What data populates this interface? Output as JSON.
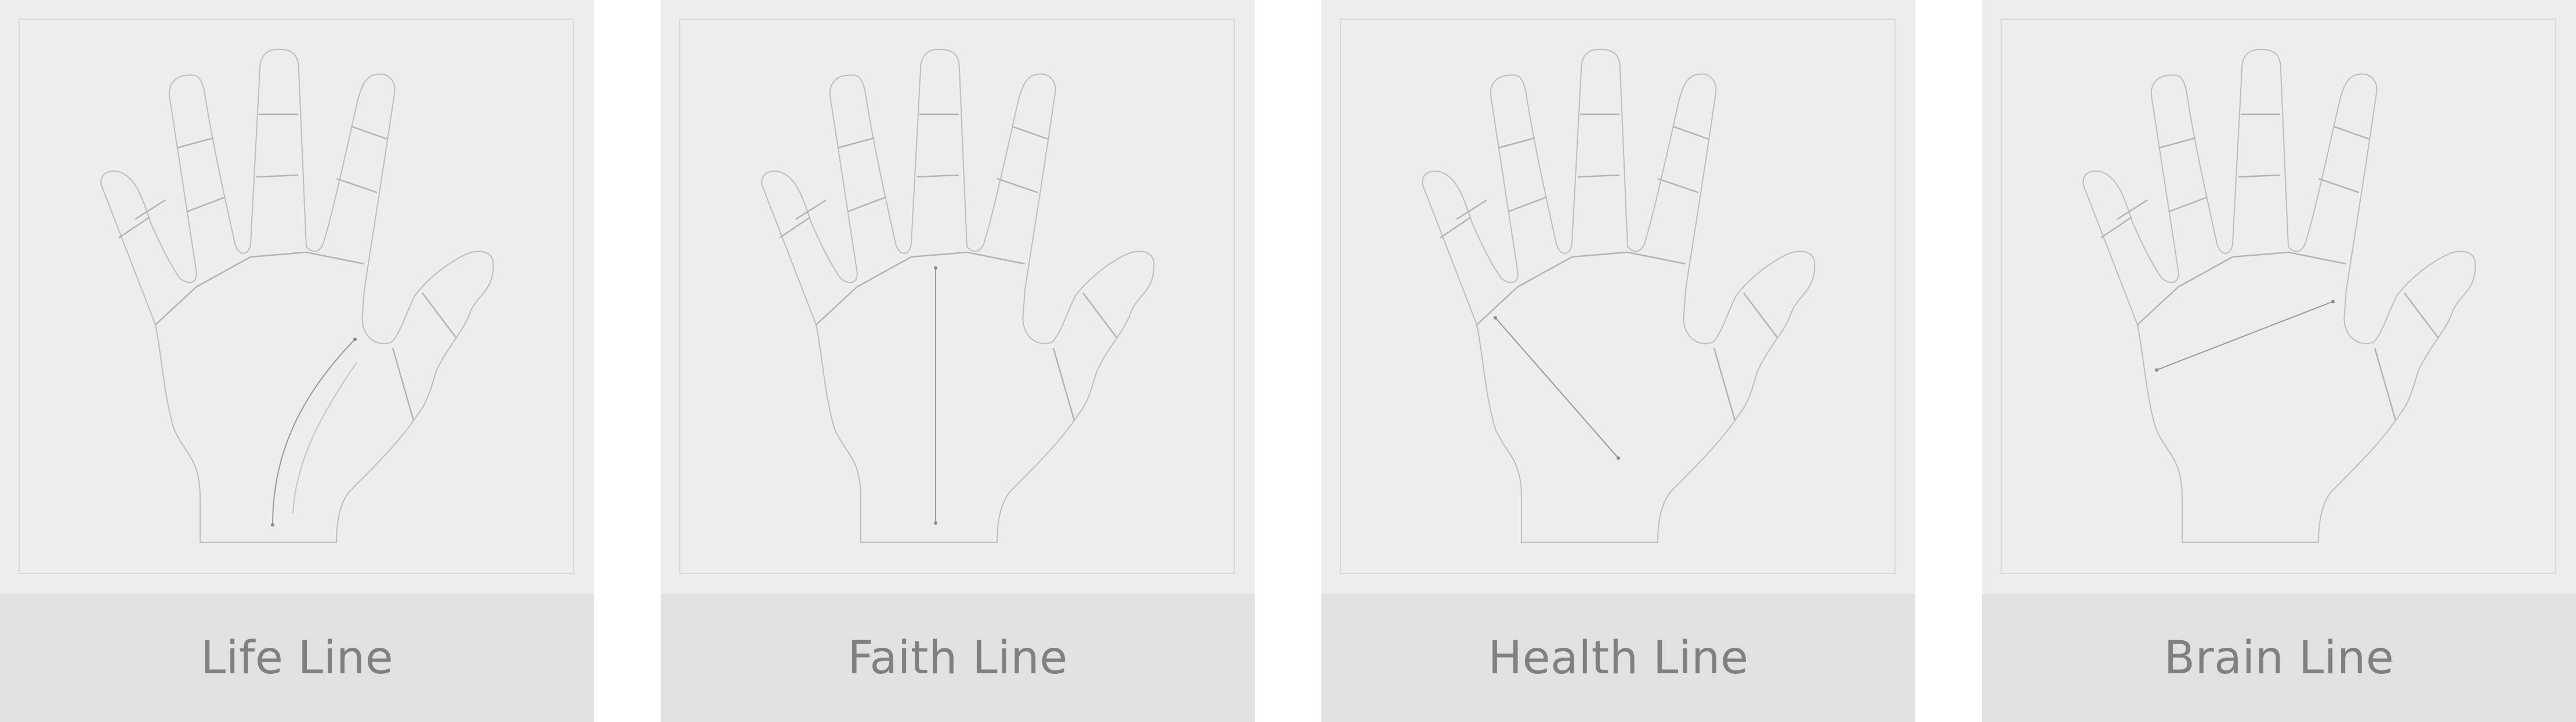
{
  "cards": [
    {
      "label": "Life Line",
      "icon": "hand-life-line-icon"
    },
    {
      "label": "Faith Line",
      "icon": "hand-faith-line-icon"
    },
    {
      "label": "Health Line",
      "icon": "hand-health-line-icon"
    },
    {
      "label": "Brain Line",
      "icon": "hand-brain-line-icon"
    }
  ],
  "colors": {
    "card_background": "#ededed",
    "label_background": "#e1e1e1",
    "label_text": "#808080",
    "page_background": "#ffffff"
  }
}
